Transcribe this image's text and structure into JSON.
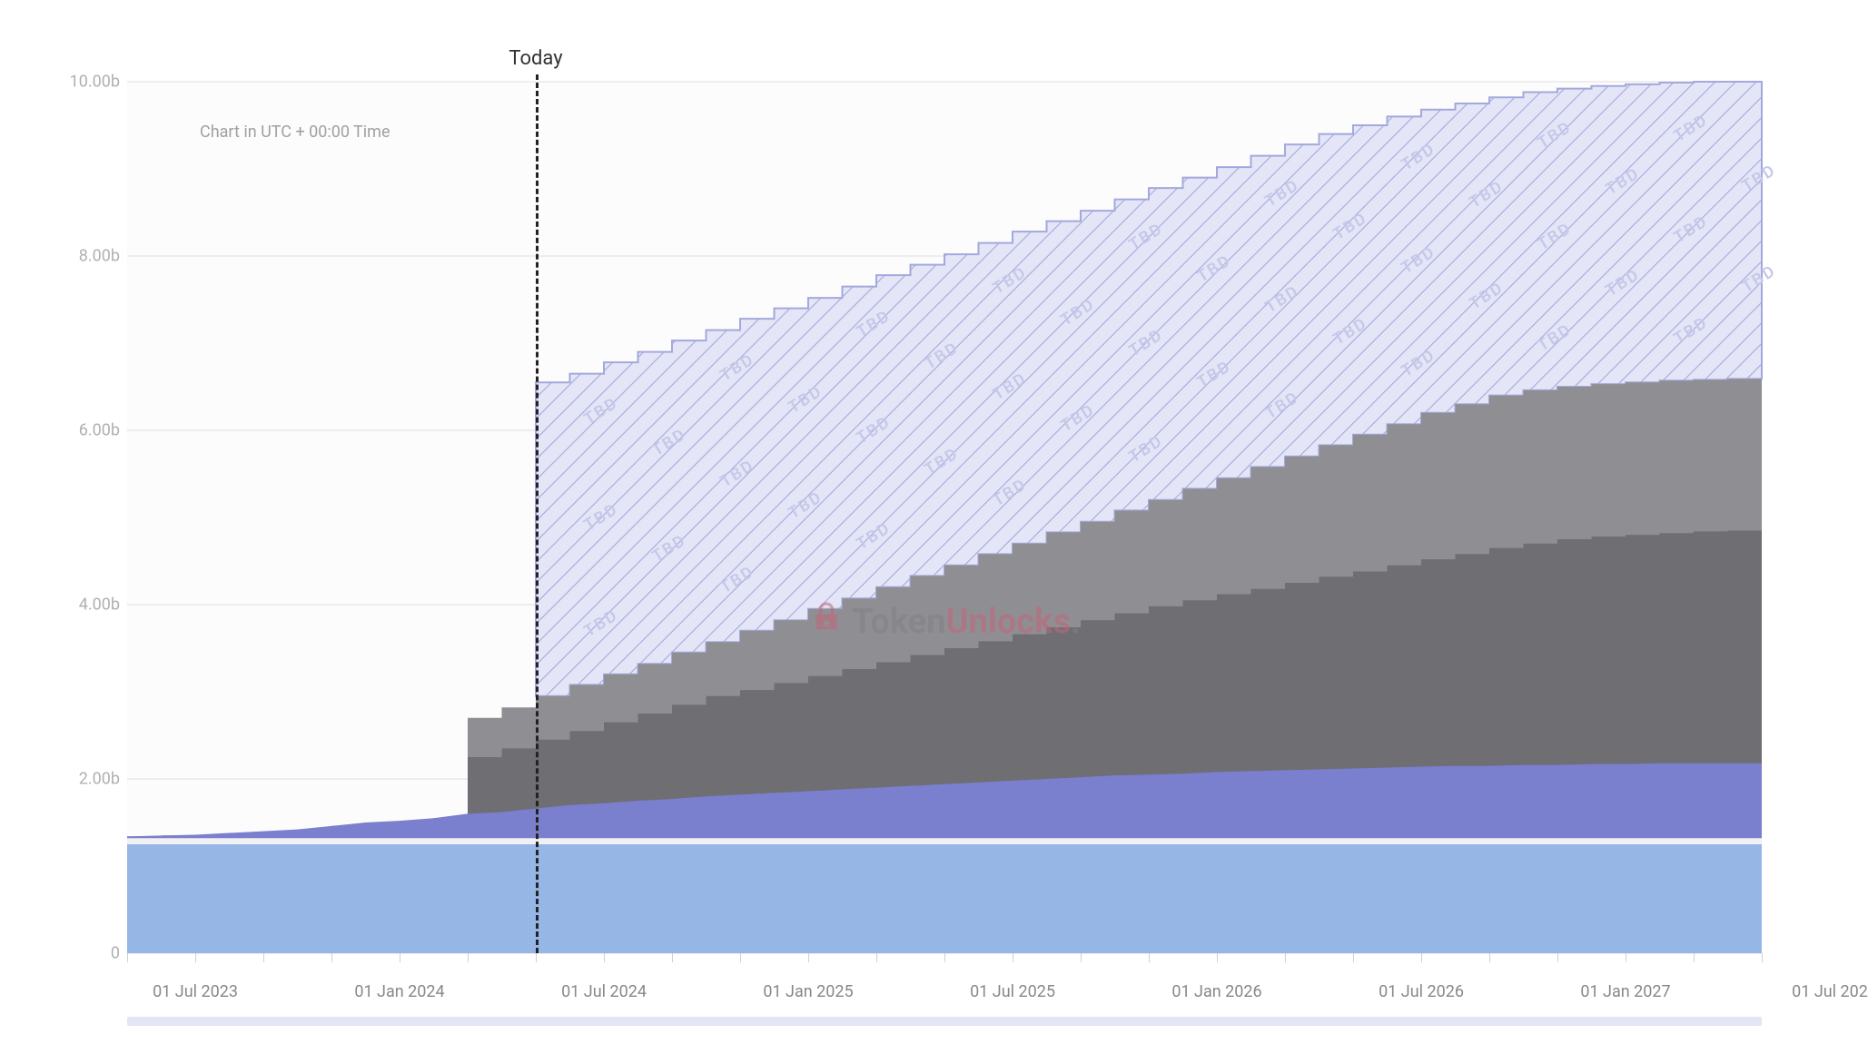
{
  "chart": {
    "type": "stacked-area-step",
    "timezone_note": "Chart in UTC + 00:00 Time",
    "today_label": "Today",
    "today_x": 12,
    "watermark": {
      "text1": "Token",
      "text2": "Unlocks",
      "text3": ".",
      "color1": "#808085",
      "color2": "#c4657a",
      "color3": "#808085",
      "lock_color": "#c4657a"
    },
    "background_color": "#ffffff",
    "plot_background": "#fcfcfd",
    "grid_color": "#e8e8e8",
    "x_domain_count": 48,
    "y_axis": {
      "min": 0,
      "max": 10,
      "unit_suffix": "b",
      "ticks": [
        {
          "v": 0,
          "label": "0"
        },
        {
          "v": 2,
          "label": "2.00b"
        },
        {
          "v": 4,
          "label": "4.00b"
        },
        {
          "v": 6,
          "label": "6.00b"
        },
        {
          "v": 8,
          "label": "8.00b"
        },
        {
          "v": 10,
          "label": "10.00b"
        }
      ],
      "label_color": "#b0b0b0",
      "label_fontsize": 18
    },
    "x_axis": {
      "ticks": [
        {
          "x": 2,
          "label": "01 Jul 2023"
        },
        {
          "x": 8,
          "label": "01 Jan 2024"
        },
        {
          "x": 14,
          "label": "01 Jul 2024"
        },
        {
          "x": 20,
          "label": "01 Jan 2025"
        },
        {
          "x": 26,
          "label": "01 Jul 2025"
        },
        {
          "x": 32,
          "label": "01 Jan 2026"
        },
        {
          "x": 38,
          "label": "01 Jul 2026"
        },
        {
          "x": 44,
          "label": "01 Jan 2027"
        },
        {
          "x": 50,
          "label": "01 Jul 202"
        }
      ],
      "minor_ticks": [
        0,
        2,
        4,
        6,
        8,
        10,
        12,
        14,
        16,
        18,
        20,
        22,
        24,
        26,
        28,
        30,
        32,
        34,
        36,
        38,
        40,
        42,
        44,
        46,
        48
      ],
      "label_color": "#888888",
      "label_fontsize": 18
    },
    "series": [
      {
        "name": "series-a",
        "color": "#96b7e6",
        "opacity": 1.0,
        "step": false,
        "values": [
          1.25,
          1.25,
          1.25,
          1.25,
          1.25,
          1.25,
          1.25,
          1.25,
          1.25,
          1.25,
          1.25,
          1.25,
          1.25,
          1.25,
          1.25,
          1.25,
          1.25,
          1.25,
          1.25,
          1.25,
          1.25,
          1.25,
          1.25,
          1.25,
          1.25,
          1.25,
          1.25,
          1.25,
          1.25,
          1.25,
          1.25,
          1.25,
          1.25,
          1.25,
          1.25,
          1.25,
          1.25,
          1.25,
          1.25,
          1.25,
          1.25,
          1.25,
          1.25,
          1.25,
          1.25,
          1.25,
          1.25,
          1.25,
          1.25
        ]
      },
      {
        "name": "series-gap",
        "color": "#f1f1f3",
        "opacity": 1.0,
        "step": false,
        "values": [
          1.32,
          1.32,
          1.32,
          1.32,
          1.32,
          1.32,
          1.32,
          1.32,
          1.32,
          1.32,
          1.32,
          1.32,
          1.32,
          1.32,
          1.32,
          1.32,
          1.32,
          1.32,
          1.32,
          1.32,
          1.32,
          1.32,
          1.32,
          1.32,
          1.32,
          1.32,
          1.32,
          1.32,
          1.32,
          1.32,
          1.32,
          1.32,
          1.32,
          1.32,
          1.32,
          1.32,
          1.32,
          1.32,
          1.32,
          1.32,
          1.32,
          1.32,
          1.32,
          1.32,
          1.32,
          1.32,
          1.32,
          1.32,
          1.32
        ]
      },
      {
        "name": "series-b",
        "color": "#7a7fce",
        "opacity": 1.0,
        "step": false,
        "values": [
          1.34,
          1.35,
          1.36,
          1.38,
          1.4,
          1.42,
          1.46,
          1.5,
          1.52,
          1.55,
          1.6,
          1.62,
          1.66,
          1.7,
          1.72,
          1.75,
          1.77,
          1.8,
          1.82,
          1.84,
          1.86,
          1.88,
          1.9,
          1.92,
          1.94,
          1.96,
          1.98,
          2.0,
          2.02,
          2.04,
          2.05,
          2.06,
          2.08,
          2.09,
          2.1,
          2.11,
          2.12,
          2.13,
          2.14,
          2.15,
          2.15,
          2.16,
          2.16,
          2.17,
          2.17,
          2.18,
          2.18,
          2.18,
          2.18
        ]
      },
      {
        "name": "series-c",
        "color": "#6e6e73",
        "opacity": 1.0,
        "step": true,
        "values": [
          1.34,
          1.35,
          1.36,
          1.38,
          1.4,
          1.42,
          1.46,
          1.5,
          1.52,
          1.55,
          2.25,
          2.35,
          2.45,
          2.55,
          2.65,
          2.75,
          2.85,
          2.95,
          3.02,
          3.1,
          3.18,
          3.26,
          3.34,
          3.42,
          3.5,
          3.58,
          3.66,
          3.74,
          3.82,
          3.9,
          3.98,
          4.05,
          4.12,
          4.18,
          4.25,
          4.32,
          4.38,
          4.45,
          4.52,
          4.58,
          4.65,
          4.7,
          4.75,
          4.78,
          4.8,
          4.82,
          4.84,
          4.85,
          4.85
        ]
      },
      {
        "name": "series-d",
        "color": "#8f8f93",
        "opacity": 1.0,
        "step": true,
        "values": [
          1.34,
          1.35,
          1.36,
          1.38,
          1.4,
          1.42,
          1.46,
          1.5,
          1.52,
          1.55,
          2.7,
          2.82,
          2.95,
          3.08,
          3.2,
          3.32,
          3.45,
          3.57,
          3.7,
          3.82,
          3.95,
          4.07,
          4.2,
          4.33,
          4.45,
          4.58,
          4.7,
          4.83,
          4.95,
          5.08,
          5.2,
          5.33,
          5.45,
          5.58,
          5.7,
          5.83,
          5.95,
          6.07,
          6.2,
          6.3,
          6.4,
          6.46,
          6.5,
          6.53,
          6.55,
          6.57,
          6.58,
          6.59,
          6.6
        ]
      },
      {
        "name": "series-e-tbd",
        "color": "#e4e6f7",
        "stroke": "#a4a8dc",
        "opacity": 1.0,
        "hatched": true,
        "step": true,
        "values": [
          0,
          0,
          0,
          0,
          0,
          0,
          0,
          0,
          0,
          0,
          0,
          0,
          6.55,
          6.65,
          6.78,
          6.9,
          7.03,
          7.15,
          7.28,
          7.4,
          7.52,
          7.65,
          7.78,
          7.9,
          8.02,
          8.15,
          8.28,
          8.4,
          8.52,
          8.65,
          8.78,
          8.9,
          9.02,
          9.15,
          9.28,
          9.4,
          9.5,
          9.6,
          9.68,
          9.75,
          9.82,
          9.88,
          9.92,
          9.95,
          9.97,
          9.99,
          10.0,
          10.0,
          10.0
        ]
      }
    ],
    "tbd_watermark_text": "TBD",
    "tbd_watermark_color": "#c5c8e8"
  }
}
